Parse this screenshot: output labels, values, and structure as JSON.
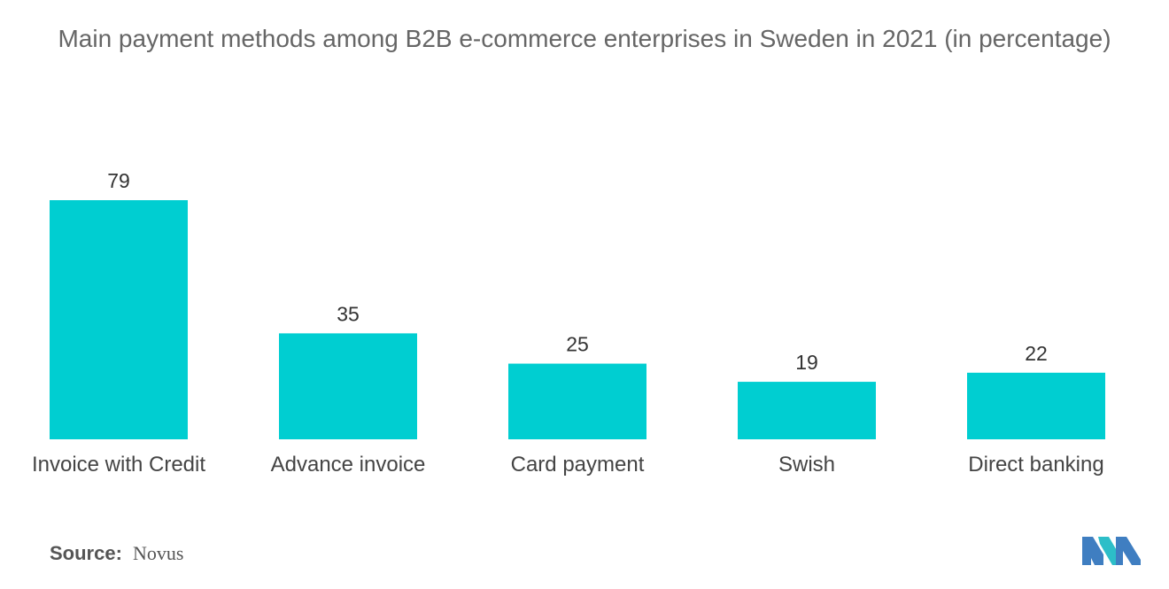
{
  "chart_data": {
    "type": "bar",
    "title": "Main payment methods among B2B e-commerce enterprises in Sweden in 2021 (in percentage)",
    "categories": [
      "Invoice with Credit",
      "Advance invoice",
      "Card payment",
      "Swish",
      "Direct banking"
    ],
    "values": [
      79,
      35,
      25,
      19,
      22
    ],
    "xlabel": "",
    "ylabel": "",
    "ylim": [
      0,
      79
    ],
    "grid": false,
    "data_labels": true,
    "bar_color": "#00CED1"
  },
  "source": {
    "label": "Source:",
    "value": "Novus"
  },
  "logo": {
    "icon": "mordor-intelligence-logo-icon",
    "colors": [
      "#3F7EC1",
      "#2DBEC8"
    ]
  }
}
